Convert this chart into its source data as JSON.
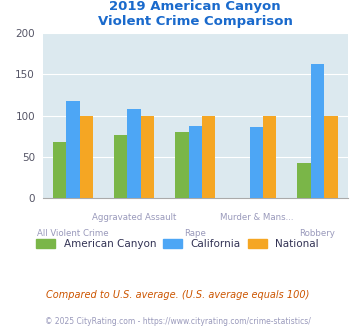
{
  "title": "2019 American Canyon\nViolent Crime Comparison",
  "categories": [
    "All Violent Crime",
    "Aggravated Assault",
    "Rape",
    "Murder & Mans...",
    "Robbery"
  ],
  "top_labels": [
    "",
    "Aggravated Assault",
    "",
    "Murder & Mans...",
    ""
  ],
  "bot_labels": [
    "All Violent Crime",
    "",
    "Rape",
    "",
    "Robbery"
  ],
  "series": {
    "American Canyon": [
      68,
      76,
      80,
      0,
      42
    ],
    "California": [
      117,
      108,
      87,
      86,
      162
    ],
    "National": [
      100,
      100,
      100,
      100,
      100
    ]
  },
  "colors": {
    "American Canyon": "#7ab648",
    "California": "#4da6f5",
    "National": "#f5a623"
  },
  "ylim": [
    0,
    200
  ],
  "yticks": [
    0,
    50,
    100,
    150,
    200
  ],
  "bar_width": 0.22,
  "plot_bg_color": "#dce9ef",
  "fig_bg_color": "#ffffff",
  "title_color": "#1a6acc",
  "xlabel_color": "#9999bb",
  "grid_color": "#ffffff",
  "footnote": "Compared to U.S. average. (U.S. average equals 100)",
  "footnote2": "© 2025 CityRating.com - https://www.cityrating.com/crime-statistics/",
  "footnote_color": "#cc5500",
  "footnote2_color": "#9999bb",
  "legend_text_color": "#333355"
}
